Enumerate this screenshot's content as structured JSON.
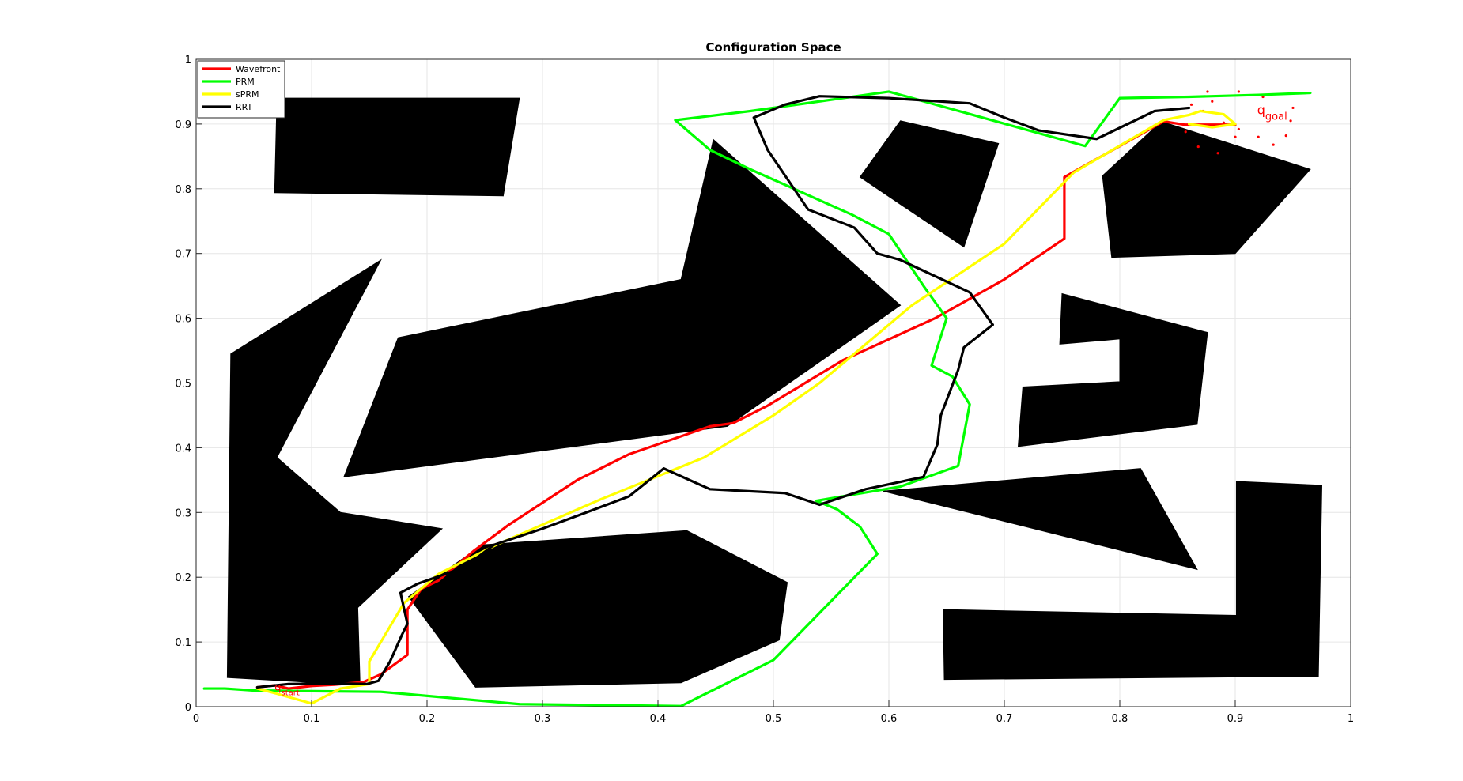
{
  "chart_data": {
    "type": "line",
    "title": "Configuration Space",
    "xlabel": "",
    "ylabel": "",
    "xlim": [
      0,
      1
    ],
    "ylim": [
      0,
      1
    ],
    "xticks": [
      "0",
      "0.1",
      "0.2",
      "0.3",
      "0.4",
      "0.5",
      "0.6",
      "0.7",
      "0.8",
      "0.9",
      "1"
    ],
    "yticks": [
      "0",
      "0.1",
      "0.2",
      "0.3",
      "0.4",
      "0.5",
      "0.6",
      "0.7",
      "0.8",
      "0.9",
      "1"
    ],
    "grid": true,
    "legend_position": "top-left",
    "obstacle_color": "#000000",
    "obstacles": [
      [
        [
          0.068,
          0.794
        ],
        [
          0.07,
          0.94
        ],
        [
          0.28,
          0.94
        ],
        [
          0.266,
          0.789
        ],
        [
          0.068,
          0.794
        ]
      ],
      [
        [
          0.575,
          0.818
        ],
        [
          0.61,
          0.905
        ],
        [
          0.695,
          0.87
        ],
        [
          0.665,
          0.71
        ],
        [
          0.575,
          0.818
        ]
      ],
      [
        [
          0.785,
          0.82
        ],
        [
          0.836,
          0.904
        ],
        [
          0.965,
          0.83
        ],
        [
          0.9,
          0.7
        ],
        [
          0.793,
          0.694
        ],
        [
          0.785,
          0.82
        ]
      ],
      [
        [
          0.128,
          0.355
        ],
        [
          0.175,
          0.57
        ],
        [
          0.42,
          0.66
        ],
        [
          0.448,
          0.876
        ],
        [
          0.61,
          0.62
        ],
        [
          0.46,
          0.433
        ],
        [
          0.128,
          0.355
        ]
      ],
      [
        [
          0.03,
          0.545
        ],
        [
          0.16,
          0.69
        ],
        [
          0.07,
          0.385
        ],
        [
          0.125,
          0.3
        ],
        [
          0.213,
          0.275
        ],
        [
          0.14,
          0.153
        ],
        [
          0.142,
          0.033
        ],
        [
          0.027,
          0.045
        ],
        [
          0.03,
          0.545
        ]
      ],
      [
        [
          0.184,
          0.17
        ],
        [
          0.242,
          0.03
        ],
        [
          0.42,
          0.037
        ],
        [
          0.505,
          0.103
        ],
        [
          0.512,
          0.192
        ],
        [
          0.425,
          0.272
        ],
        [
          0.248,
          0.25
        ],
        [
          0.184,
          0.17
        ]
      ],
      [
        [
          0.75,
          0.638
        ],
        [
          0.748,
          0.56
        ],
        [
          0.8,
          0.568
        ],
        [
          0.8,
          0.502
        ],
        [
          0.716,
          0.494
        ],
        [
          0.712,
          0.402
        ],
        [
          0.867,
          0.436
        ],
        [
          0.876,
          0.578
        ],
        [
          0.75,
          0.638
        ]
      ],
      [
        [
          0.595,
          0.333
        ],
        [
          0.818,
          0.368
        ],
        [
          0.867,
          0.212
        ],
        [
          0.595,
          0.333
        ]
      ],
      [
        [
          0.647,
          0.15
        ],
        [
          0.901,
          0.141
        ],
        [
          0.901,
          0.348
        ],
        [
          0.975,
          0.342
        ],
        [
          0.972,
          0.047
        ],
        [
          0.648,
          0.042
        ],
        [
          0.647,
          0.15
        ]
      ]
    ],
    "series": [
      {
        "name": "Wavefront",
        "color": "#ff0000",
        "points": [
          [
            0.053,
            0.03
          ],
          [
            0.068,
            0.033
          ],
          [
            0.08,
            0.028
          ],
          [
            0.1,
            0.032
          ],
          [
            0.12,
            0.034
          ],
          [
            0.145,
            0.038
          ],
          [
            0.16,
            0.05
          ],
          [
            0.183,
            0.08
          ],
          [
            0.183,
            0.15
          ],
          [
            0.195,
            0.182
          ],
          [
            0.21,
            0.195
          ],
          [
            0.24,
            0.24
          ],
          [
            0.27,
            0.28
          ],
          [
            0.33,
            0.35
          ],
          [
            0.375,
            0.39
          ],
          [
            0.44,
            0.43
          ],
          [
            0.445,
            0.433
          ],
          [
            0.465,
            0.438
          ],
          [
            0.495,
            0.465
          ],
          [
            0.56,
            0.535
          ],
          [
            0.64,
            0.6
          ],
          [
            0.7,
            0.66
          ],
          [
            0.752,
            0.723
          ],
          [
            0.752,
            0.818
          ],
          [
            0.838,
            0.904
          ],
          [
            0.856,
            0.899
          ],
          [
            0.9,
            0.899
          ]
        ]
      },
      {
        "name": "PRM",
        "color": "#00ff00",
        "points": [
          [
            0.007,
            0.028
          ],
          [
            0.025,
            0.028
          ],
          [
            0.05,
            0.025
          ],
          [
            0.1,
            0.024
          ],
          [
            0.16,
            0.023
          ],
          [
            0.28,
            0.004
          ],
          [
            0.42,
            0.001
          ],
          [
            0.5,
            0.072
          ],
          [
            0.59,
            0.236
          ],
          [
            0.575,
            0.278
          ],
          [
            0.555,
            0.305
          ],
          [
            0.537,
            0.318
          ],
          [
            0.61,
            0.34
          ],
          [
            0.66,
            0.372
          ],
          [
            0.67,
            0.467
          ],
          [
            0.655,
            0.51
          ],
          [
            0.637,
            0.527
          ],
          [
            0.65,
            0.6
          ],
          [
            0.63,
            0.65
          ],
          [
            0.6,
            0.73
          ],
          [
            0.568,
            0.76
          ],
          [
            0.48,
            0.83
          ],
          [
            0.445,
            0.86
          ],
          [
            0.415,
            0.906
          ],
          [
            0.48,
            0.92
          ],
          [
            0.6,
            0.95
          ],
          [
            0.77,
            0.866
          ],
          [
            0.8,
            0.94
          ],
          [
            0.86,
            0.942
          ],
          [
            0.92,
            0.945
          ],
          [
            0.965,
            0.948
          ]
        ]
      },
      {
        "name": "sPRM",
        "color": "#ffff00",
        "points": [
          [
            0.053,
            0.028
          ],
          [
            0.07,
            0.02
          ],
          [
            0.1,
            0.005
          ],
          [
            0.125,
            0.028
          ],
          [
            0.15,
            0.035
          ],
          [
            0.15,
            0.07
          ],
          [
            0.18,
            0.16
          ],
          [
            0.21,
            0.205
          ],
          [
            0.26,
            0.25
          ],
          [
            0.35,
            0.32
          ],
          [
            0.44,
            0.385
          ],
          [
            0.5,
            0.45
          ],
          [
            0.54,
            0.5
          ],
          [
            0.62,
            0.62
          ],
          [
            0.7,
            0.715
          ],
          [
            0.76,
            0.825
          ],
          [
            0.838,
            0.906
          ],
          [
            0.86,
            0.914
          ],
          [
            0.87,
            0.92
          ],
          [
            0.89,
            0.915
          ],
          [
            0.9,
            0.9
          ],
          [
            0.88,
            0.895
          ],
          [
            0.86,
            0.9
          ]
        ]
      },
      {
        "name": "RRT",
        "color": "#000000",
        "points": [
          [
            0.053,
            0.03
          ],
          [
            0.08,
            0.035
          ],
          [
            0.12,
            0.036
          ],
          [
            0.148,
            0.035
          ],
          [
            0.158,
            0.04
          ],
          [
            0.168,
            0.07
          ],
          [
            0.178,
            0.11
          ],
          [
            0.183,
            0.128
          ],
          [
            0.177,
            0.176
          ],
          [
            0.192,
            0.19
          ],
          [
            0.232,
            0.215
          ],
          [
            0.258,
            0.25
          ],
          [
            0.3,
            0.275
          ],
          [
            0.338,
            0.3
          ],
          [
            0.375,
            0.325
          ],
          [
            0.405,
            0.368
          ],
          [
            0.445,
            0.336
          ],
          [
            0.51,
            0.33
          ],
          [
            0.54,
            0.312
          ],
          [
            0.58,
            0.336
          ],
          [
            0.63,
            0.355
          ],
          [
            0.642,
            0.405
          ],
          [
            0.645,
            0.45
          ],
          [
            0.66,
            0.52
          ],
          [
            0.665,
            0.555
          ],
          [
            0.69,
            0.59
          ],
          [
            0.67,
            0.64
          ],
          [
            0.61,
            0.69
          ],
          [
            0.59,
            0.7
          ],
          [
            0.57,
            0.74
          ],
          [
            0.53,
            0.768
          ],
          [
            0.495,
            0.86
          ],
          [
            0.483,
            0.91
          ],
          [
            0.51,
            0.93
          ],
          [
            0.54,
            0.943
          ],
          [
            0.6,
            0.94
          ],
          [
            0.67,
            0.932
          ],
          [
            0.7,
            0.91
          ],
          [
            0.73,
            0.89
          ],
          [
            0.78,
            0.877
          ],
          [
            0.83,
            0.92
          ],
          [
            0.86,
            0.925
          ]
        ]
      }
    ],
    "annotations": {
      "start_label": "q",
      "start_subscript": "start",
      "goal_label": "q",
      "goal_subscript": "goal"
    },
    "goal_cloud": [
      [
        0.862,
        0.93
      ],
      [
        0.876,
        0.95
      ],
      [
        0.903,
        0.95
      ],
      [
        0.924,
        0.942
      ],
      [
        0.95,
        0.925
      ],
      [
        0.948,
        0.905
      ],
      [
        0.944,
        0.882
      ],
      [
        0.933,
        0.868
      ],
      [
        0.92,
        0.88
      ],
      [
        0.903,
        0.892
      ],
      [
        0.89,
        0.902
      ],
      [
        0.9,
        0.88
      ],
      [
        0.885,
        0.855
      ],
      [
        0.868,
        0.865
      ],
      [
        0.857,
        0.888
      ],
      [
        0.88,
        0.935
      ],
      [
        0.872,
        0.92
      ]
    ]
  }
}
